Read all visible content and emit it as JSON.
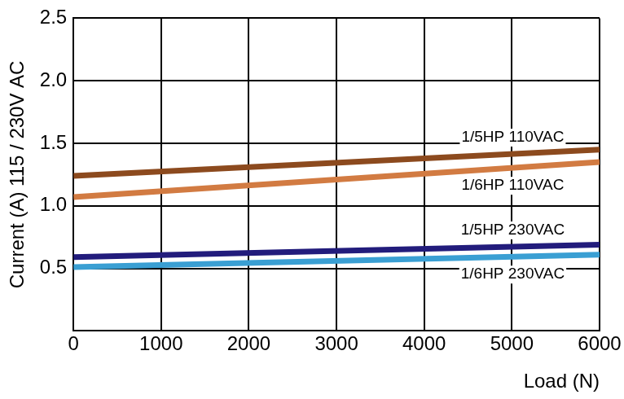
{
  "chart_data": {
    "type": "line",
    "x_label": "Load (N)",
    "y_label": "Current (A) 115 / 230V AC",
    "x": [
      0,
      6000
    ],
    "series": [
      {
        "name": "1/5HP 110VAC",
        "color": "#8c4a1e",
        "values": [
          1.24,
          1.45
        ]
      },
      {
        "name": "1/6HP 110VAC",
        "color": "#d27b42",
        "values": [
          1.07,
          1.35
        ]
      },
      {
        "name": "1/5HP 230VAC",
        "color": "#221c7c",
        "values": [
          0.59,
          0.69
        ]
      },
      {
        "name": "1/6HP 230VAC",
        "color": "#3a9fd3",
        "values": [
          0.51,
          0.61
        ]
      }
    ],
    "xlim": [
      0,
      6000
    ],
    "xticks": [
      0,
      1000,
      2000,
      3000,
      4000,
      5000,
      6000
    ],
    "ylim": [
      0,
      2.5
    ],
    "yticks": [
      0.5,
      {
        "value": 1,
        "label": "1.0"
      },
      1.5,
      {
        "value": 2,
        "label": "2.0"
      },
      2.5
    ],
    "grid": true
  }
}
